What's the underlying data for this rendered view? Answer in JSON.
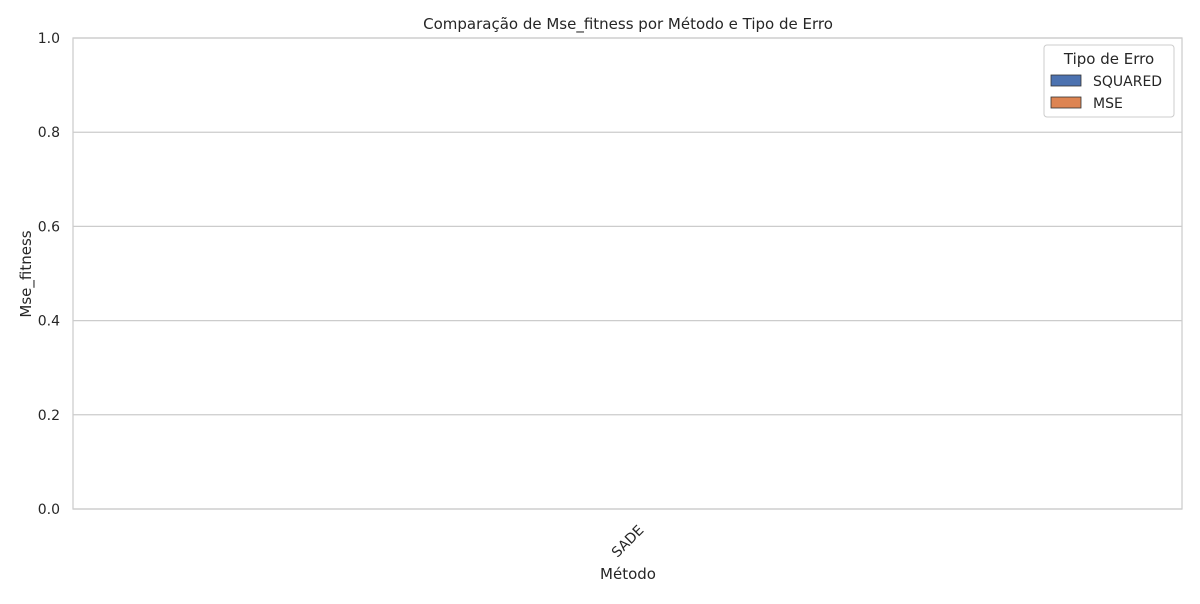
{
  "chart_data": {
    "type": "bar",
    "title": "Comparação de Mse_fitness por Método e Tipo de Erro",
    "xlabel": "Método",
    "ylabel": "Mse_fitness",
    "categories": [
      "SADE"
    ],
    "ylim": [
      0,
      1
    ],
    "yticks": [
      0.0,
      0.2,
      0.4,
      0.6,
      0.8,
      1.0
    ],
    "ytick_labels": [
      "0.0",
      "0.2",
      "0.4",
      "0.6",
      "0.8",
      "1.0"
    ],
    "grid": true,
    "legend_placement": "top-right",
    "legend_title": "Tipo de Erro",
    "series": [
      {
        "name": "SQUARED",
        "color": "#4c72b0",
        "values": [
          null
        ]
      },
      {
        "name": "MSE",
        "color": "#dd8452",
        "values": [
          null
        ]
      }
    ]
  }
}
